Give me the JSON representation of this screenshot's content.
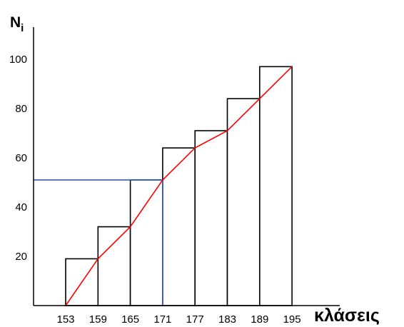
{
  "chart_data": {
    "type": "bar",
    "title": "",
    "xlabel": "κλάσεις",
    "ylabel": {
      "main": "N",
      "subscript": "i"
    },
    "class_boundaries": [
      153,
      159,
      165,
      171,
      177,
      183,
      189,
      195
    ],
    "categories": [
      "153-159",
      "159-165",
      "165-171",
      "171-177",
      "177-183",
      "183-189",
      "189-195"
    ],
    "values": [
      19,
      32,
      51,
      64,
      71,
      84,
      97
    ],
    "x_ticks": [
      "153",
      "159",
      "165",
      "171",
      "177",
      "183",
      "189",
      "195"
    ],
    "y_ticks": [
      "20",
      "40",
      "60",
      "80",
      "100"
    ],
    "ylim": [
      0,
      110
    ],
    "ogive": {
      "color": "#ff0000",
      "x": [
        153,
        159,
        165,
        171,
        177,
        183,
        189,
        195
      ],
      "y": [
        0,
        19,
        32,
        51,
        64,
        71,
        84,
        97
      ]
    },
    "reference": {
      "color": "#3355dd",
      "x": 171,
      "y": 51
    },
    "grid": false,
    "bar_fill": "#ffffff",
    "bar_stroke": "#000000"
  }
}
